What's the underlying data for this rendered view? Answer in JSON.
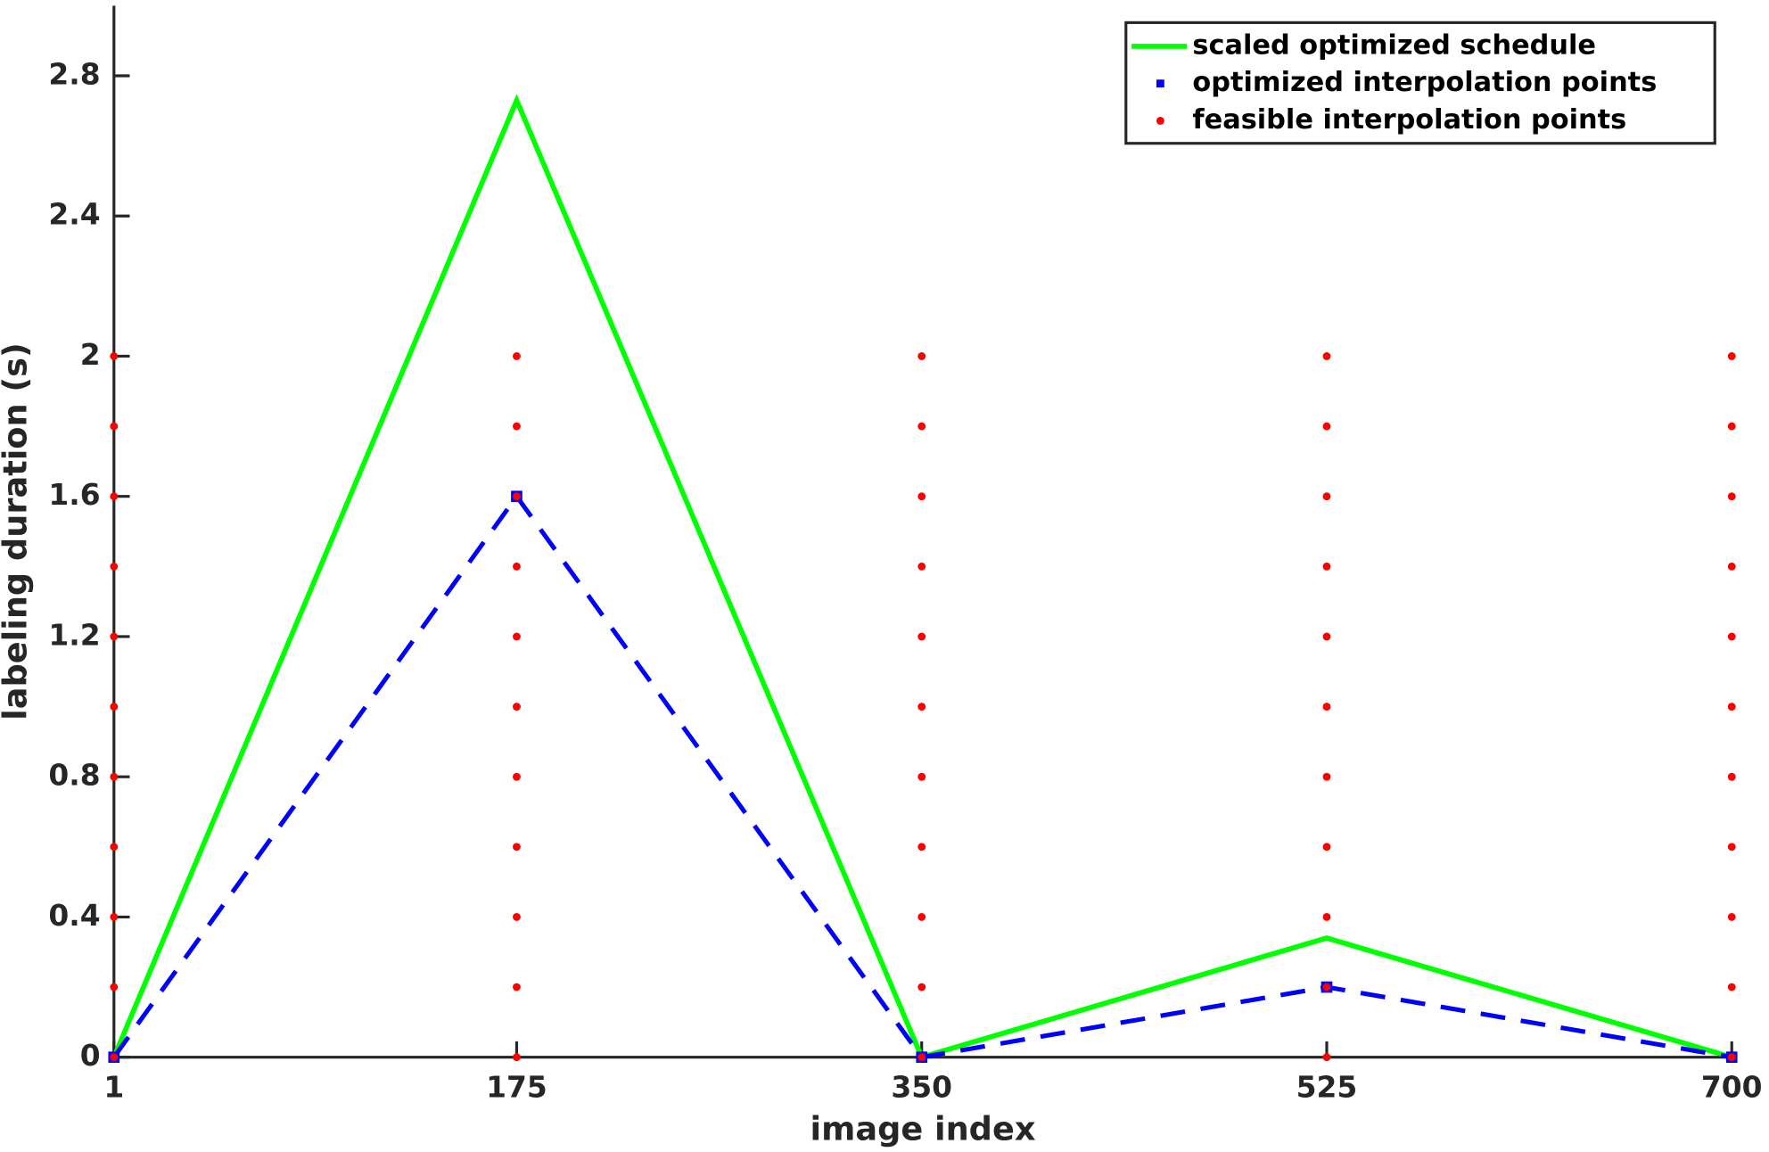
{
  "chart_data": {
    "type": "line",
    "xlabel": "image index",
    "ylabel": "labeling duration (s)",
    "xlim": [
      1,
      700
    ],
    "xticks": [
      1,
      175,
      350,
      525,
      700
    ],
    "ylim": [
      0,
      3
    ],
    "yticks": [
      0,
      0.4,
      0.8,
      1.2,
      1.6,
      2,
      2.4,
      2.8
    ],
    "legend": "upper right",
    "series": [
      {
        "name": "scaled optimized schedule",
        "color": "#00ff00",
        "linestyle": "solid",
        "marker": "none",
        "x": [
          1,
          175,
          350,
          525,
          700
        ],
        "values": [
          0,
          2.73,
          0,
          0.34,
          0
        ]
      },
      {
        "name": "optimized interpolation points",
        "color": "#0000ff",
        "linestyle": "dashed",
        "marker": "square",
        "x": [
          1,
          175,
          350,
          525,
          700
        ],
        "values": [
          0,
          1.6,
          0,
          0.2,
          0
        ]
      },
      {
        "name": "feasible interpolation points",
        "color": "#ff0000",
        "linestyle": "none",
        "marker": "dot",
        "x": [
          1,
          1,
          1,
          1,
          1,
          1,
          1,
          1,
          1,
          1,
          1,
          175,
          175,
          175,
          175,
          175,
          175,
          175,
          175,
          175,
          175,
          175,
          350,
          350,
          350,
          350,
          350,
          350,
          350,
          350,
          350,
          350,
          350,
          525,
          525,
          525,
          525,
          525,
          525,
          525,
          525,
          525,
          525,
          525,
          700,
          700,
          700,
          700,
          700,
          700,
          700,
          700,
          700,
          700,
          700
        ],
        "values": [
          0,
          0.2,
          0.4,
          0.6,
          0.8,
          1,
          1.2,
          1.4,
          1.6,
          1.8,
          2,
          0,
          0.2,
          0.4,
          0.6,
          0.8,
          1,
          1.2,
          1.4,
          1.6,
          1.8,
          2,
          0,
          0.2,
          0.4,
          0.6,
          0.8,
          1,
          1.2,
          1.4,
          1.6,
          1.8,
          2,
          0,
          0.2,
          0.4,
          0.6,
          0.8,
          1,
          1.2,
          1.4,
          1.6,
          1.8,
          2,
          0,
          0.2,
          0.4,
          0.6,
          0.8,
          1,
          1.2,
          1.4,
          1.6,
          1.8,
          2
        ]
      }
    ]
  }
}
